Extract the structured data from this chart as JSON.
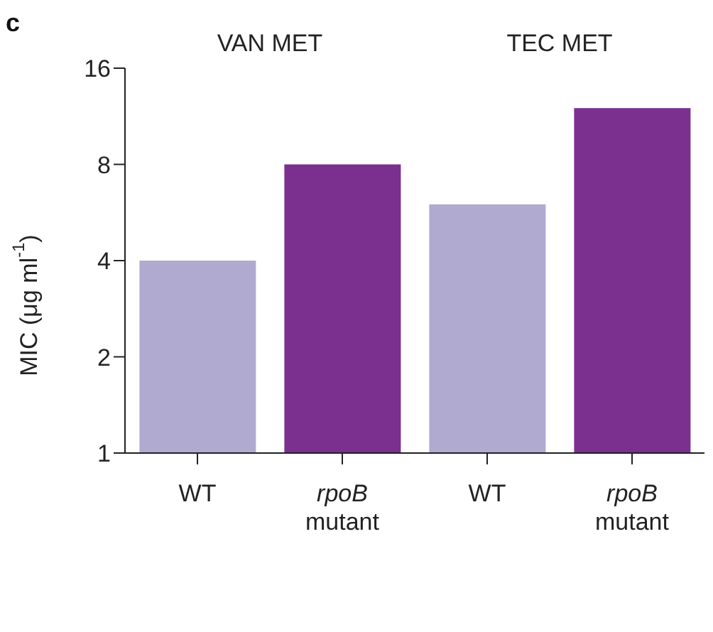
{
  "chart_data": {
    "type": "bar",
    "ylabel": "MIC (μg ml$^{-1}$)",
    "categories": [
      "WT",
      "rpoB mutant",
      "WT",
      "rpoB mutant"
    ],
    "values": [
      4,
      8,
      6,
      12
    ],
    "colors": [
      "#b0aad0",
      "#7b2f8e",
      "#b0aad0",
      "#7b2f8e"
    ],
    "log": "y",
    "ylim": [
      1,
      16
    ],
    "yticks": [
      1,
      2,
      4,
      8,
      16
    ],
    "grid": false,
    "legend": false,
    "annotations": [
      "c",
      "VAN MET",
      "TEC MET"
    ]
  }
}
